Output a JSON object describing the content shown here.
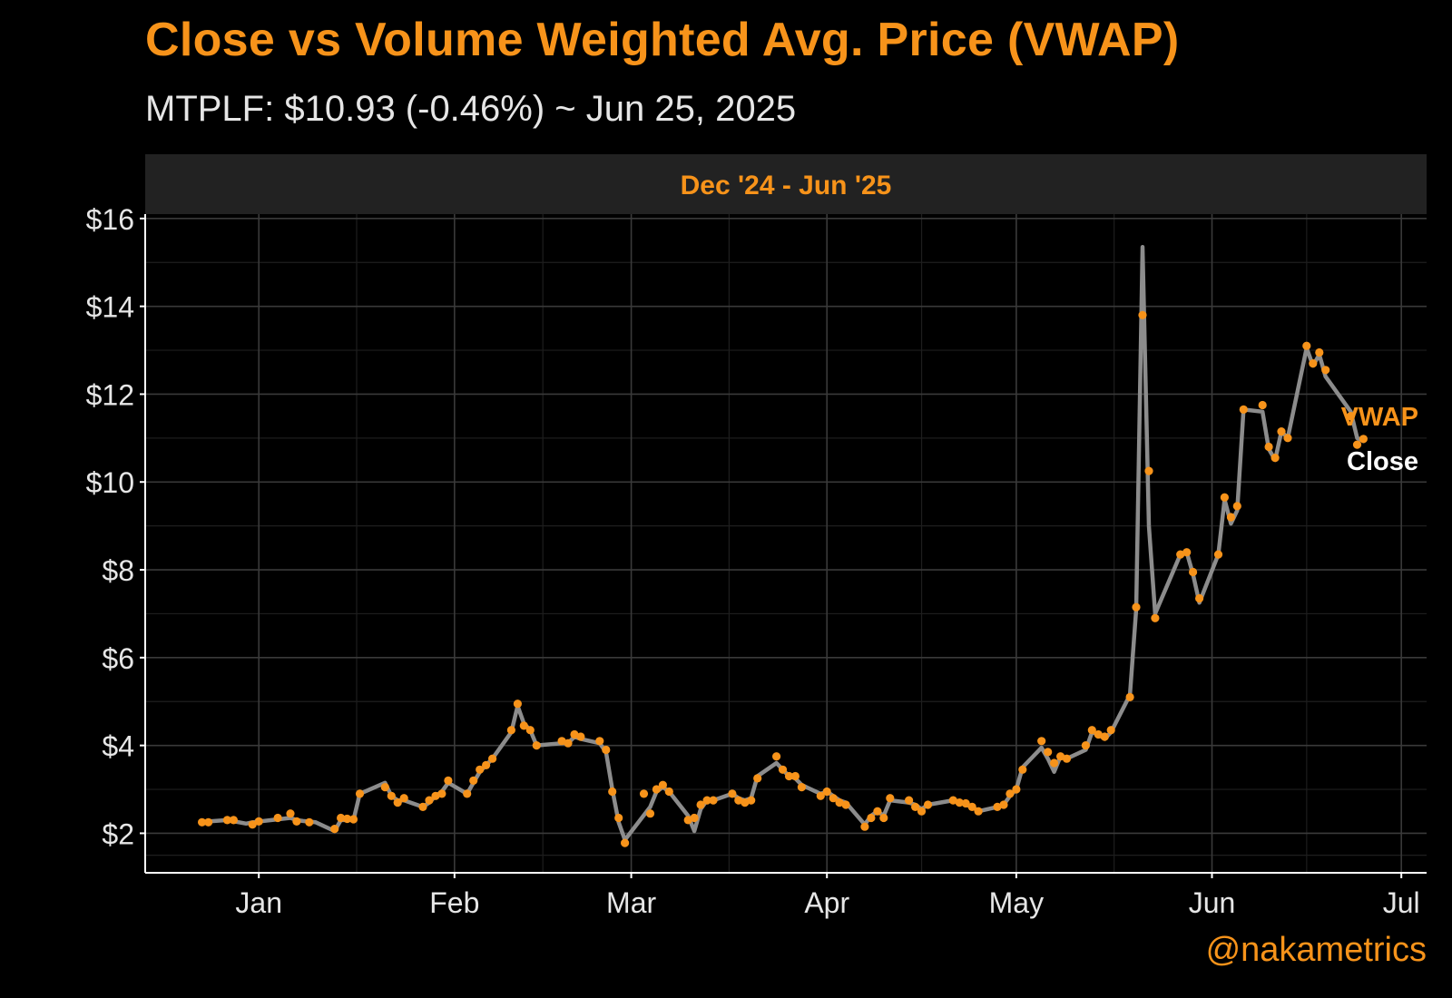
{
  "title": "Close vs Volume Weighted Avg. Price (VWAP)",
  "subtitle": "MTPLF: $10.93 (-0.46%) ~ Jun 25, 2025",
  "credit": "@nakametrics",
  "colors": {
    "accent": "#f7931a",
    "close_line": "#8c8c8c",
    "background": "#000000",
    "strip": "#222222",
    "grid": "#3a3a3a",
    "grid_minor": "#1e1e1e"
  },
  "chart_data": {
    "type": "line",
    "panel_title": "Dec '24 - Jun '25",
    "x_start": "2024-12-16",
    "xlim": [
      "2024-12-14",
      "2025-07-05"
    ],
    "ylim": [
      1.1,
      16.1
    ],
    "yticks": [
      2,
      4,
      6,
      8,
      10,
      12,
      14,
      16
    ],
    "ytick_labels": [
      "$2",
      "$4",
      "$6",
      "$8",
      "$10",
      "$12",
      "$14",
      "$16"
    ],
    "xticks": [
      "2025-01-01",
      "2025-02-01",
      "2025-03-01",
      "2025-04-01",
      "2025-05-01",
      "2025-06-01",
      "2025-07-01"
    ],
    "xtick_labels": [
      "Jan",
      "Feb",
      "Mar",
      "Apr",
      "May",
      "Jun",
      "Jul"
    ],
    "grid": true,
    "series": [
      {
        "name": "Close",
        "style": "line",
        "points": [
          [
            "2024-12-23",
            2.25
          ],
          [
            "2024-12-24",
            2.27
          ],
          [
            "2024-12-27",
            2.3
          ],
          [
            "2024-12-30",
            2.22
          ],
          [
            "2024-12-31",
            2.25
          ],
          [
            "2025-01-03",
            2.3
          ],
          [
            "2025-01-06",
            2.35
          ],
          [
            "2025-01-07",
            2.3
          ],
          [
            "2025-01-08",
            2.28
          ],
          [
            "2025-01-10",
            2.25
          ],
          [
            "2025-01-13",
            2.05
          ],
          [
            "2025-01-14",
            2.3
          ],
          [
            "2025-01-15",
            2.3
          ],
          [
            "2025-01-16",
            2.3
          ],
          [
            "2025-01-17",
            2.9
          ],
          [
            "2025-01-21",
            3.15
          ],
          [
            "2025-01-22",
            2.85
          ],
          [
            "2025-01-23",
            2.75
          ],
          [
            "2025-01-24",
            2.75
          ],
          [
            "2025-01-27",
            2.6
          ],
          [
            "2025-01-28",
            2.7
          ],
          [
            "2025-01-29",
            2.85
          ],
          [
            "2025-01-30",
            2.95
          ],
          [
            "2025-01-31",
            3.15
          ],
          [
            "2025-02-03",
            2.9
          ],
          [
            "2025-02-04",
            3.15
          ],
          [
            "2025-02-05",
            3.4
          ],
          [
            "2025-02-06",
            3.55
          ],
          [
            "2025-02-07",
            3.7
          ],
          [
            "2025-02-10",
            4.3
          ],
          [
            "2025-02-11",
            4.9
          ],
          [
            "2025-02-12",
            4.5
          ],
          [
            "2025-02-13",
            4.35
          ],
          [
            "2025-02-14",
            4.0
          ],
          [
            "2025-02-18",
            4.05
          ],
          [
            "2025-02-19",
            4.05
          ],
          [
            "2025-02-20",
            4.2
          ],
          [
            "2025-02-21",
            4.15
          ],
          [
            "2025-02-24",
            4.05
          ],
          [
            "2025-02-25",
            3.85
          ],
          [
            "2025-02-26",
            3.0
          ],
          [
            "2025-02-27",
            2.25
          ],
          [
            "2025-02-28",
            1.85
          ],
          [
            "2025-03-04",
            2.6
          ],
          [
            "2025-03-05",
            2.95
          ],
          [
            "2025-03-06",
            3.05
          ],
          [
            "2025-03-07",
            2.95
          ],
          [
            "2025-03-10",
            2.4
          ],
          [
            "2025-03-11",
            2.05
          ],
          [
            "2025-03-12",
            2.55
          ],
          [
            "2025-03-13",
            2.75
          ],
          [
            "2025-03-14",
            2.75
          ],
          [
            "2025-03-17",
            2.9
          ],
          [
            "2025-03-18",
            2.8
          ],
          [
            "2025-03-19",
            2.75
          ],
          [
            "2025-03-20",
            2.8
          ],
          [
            "2025-03-21",
            3.3
          ],
          [
            "2025-03-24",
            3.6
          ],
          [
            "2025-03-25",
            3.45
          ],
          [
            "2025-03-26",
            3.3
          ],
          [
            "2025-03-27",
            3.25
          ],
          [
            "2025-03-28",
            3.1
          ],
          [
            "2025-03-31",
            2.9
          ],
          [
            "2025-04-01",
            2.95
          ],
          [
            "2025-04-02",
            2.85
          ],
          [
            "2025-04-03",
            2.75
          ],
          [
            "2025-04-04",
            2.7
          ],
          [
            "2025-04-07",
            2.2
          ],
          [
            "2025-04-08",
            2.4
          ],
          [
            "2025-04-09",
            2.5
          ],
          [
            "2025-04-10",
            2.4
          ],
          [
            "2025-04-11",
            2.75
          ],
          [
            "2025-04-14",
            2.7
          ],
          [
            "2025-04-15",
            2.65
          ],
          [
            "2025-04-16",
            2.55
          ],
          [
            "2025-04-17",
            2.65
          ],
          [
            "2025-04-21",
            2.75
          ],
          [
            "2025-04-22",
            2.7
          ],
          [
            "2025-04-23",
            2.65
          ],
          [
            "2025-04-24",
            2.6
          ],
          [
            "2025-04-25",
            2.5
          ],
          [
            "2025-04-28",
            2.6
          ],
          [
            "2025-04-29",
            2.65
          ],
          [
            "2025-04-30",
            2.85
          ],
          [
            "2025-05-01",
            3.0
          ],
          [
            "2025-05-02",
            3.5
          ],
          [
            "2025-05-05",
            3.95
          ],
          [
            "2025-05-06",
            3.7
          ],
          [
            "2025-05-07",
            3.4
          ],
          [
            "2025-05-08",
            3.75
          ],
          [
            "2025-05-09",
            3.7
          ],
          [
            "2025-05-12",
            3.9
          ],
          [
            "2025-05-13",
            4.3
          ],
          [
            "2025-05-14",
            4.25
          ],
          [
            "2025-05-15",
            4.15
          ],
          [
            "2025-05-16",
            4.3
          ],
          [
            "2025-05-19",
            5.15
          ],
          [
            "2025-05-20",
            7.1
          ],
          [
            "2025-05-21",
            15.35
          ],
          [
            "2025-05-22",
            9.0
          ],
          [
            "2025-05-23",
            7.0
          ],
          [
            "2025-05-27",
            8.35
          ],
          [
            "2025-05-28",
            8.4
          ],
          [
            "2025-05-29",
            7.9
          ],
          [
            "2025-05-30",
            7.25
          ],
          [
            "2025-06-02",
            8.35
          ],
          [
            "2025-06-03",
            9.6
          ],
          [
            "2025-06-04",
            9.05
          ],
          [
            "2025-06-05",
            9.35
          ],
          [
            "2025-06-06",
            11.65
          ],
          [
            "2025-06-09",
            11.6
          ],
          [
            "2025-06-10",
            10.75
          ],
          [
            "2025-06-11",
            10.5
          ],
          [
            "2025-06-12",
            11.15
          ],
          [
            "2025-06-13",
            11.0
          ],
          [
            "2025-06-16",
            13.05
          ],
          [
            "2025-06-17",
            12.65
          ],
          [
            "2025-06-18",
            12.9
          ],
          [
            "2025-06-19",
            12.4
          ],
          [
            "2025-06-23",
            11.6
          ],
          [
            "2025-06-24",
            11.0
          ],
          [
            "2025-06-25",
            10.93
          ]
        ]
      },
      {
        "name": "VWAP",
        "style": "points",
        "points": [
          [
            "2024-12-23",
            2.25
          ],
          [
            "2024-12-24",
            2.25
          ],
          [
            "2024-12-27",
            2.3
          ],
          [
            "2024-12-28",
            2.3
          ],
          [
            "2024-12-31",
            2.2
          ],
          [
            "2025-01-01",
            2.27
          ],
          [
            "2025-01-04",
            2.35
          ],
          [
            "2025-01-06",
            2.45
          ],
          [
            "2025-01-07",
            2.27
          ],
          [
            "2025-01-09",
            2.25
          ],
          [
            "2025-01-13",
            2.1
          ],
          [
            "2025-01-14",
            2.35
          ],
          [
            "2025-01-15",
            2.33
          ],
          [
            "2025-01-16",
            2.32
          ],
          [
            "2025-01-17",
            2.9
          ],
          [
            "2025-01-21",
            3.05
          ],
          [
            "2025-01-22",
            2.85
          ],
          [
            "2025-01-23",
            2.7
          ],
          [
            "2025-01-24",
            2.8
          ],
          [
            "2025-01-27",
            2.6
          ],
          [
            "2025-01-28",
            2.75
          ],
          [
            "2025-01-29",
            2.85
          ],
          [
            "2025-01-30",
            2.9
          ],
          [
            "2025-01-31",
            3.2
          ],
          [
            "2025-02-03",
            2.9
          ],
          [
            "2025-02-04",
            3.2
          ],
          [
            "2025-02-05",
            3.45
          ],
          [
            "2025-02-06",
            3.55
          ],
          [
            "2025-02-07",
            3.7
          ],
          [
            "2025-02-10",
            4.35
          ],
          [
            "2025-02-11",
            4.95
          ],
          [
            "2025-02-12",
            4.45
          ],
          [
            "2025-02-13",
            4.35
          ],
          [
            "2025-02-14",
            4.0
          ],
          [
            "2025-02-18",
            4.1
          ],
          [
            "2025-02-19",
            4.05
          ],
          [
            "2025-02-20",
            4.25
          ],
          [
            "2025-02-21",
            4.2
          ],
          [
            "2025-02-24",
            4.1
          ],
          [
            "2025-02-25",
            3.9
          ],
          [
            "2025-02-26",
            2.95
          ],
          [
            "2025-02-27",
            2.35
          ],
          [
            "2025-02-28",
            1.78
          ],
          [
            "2025-03-03",
            2.9
          ],
          [
            "2025-03-04",
            2.45
          ],
          [
            "2025-03-05",
            3.0
          ],
          [
            "2025-03-06",
            3.1
          ],
          [
            "2025-03-07",
            2.95
          ],
          [
            "2025-03-10",
            2.3
          ],
          [
            "2025-03-11",
            2.35
          ],
          [
            "2025-03-12",
            2.65
          ],
          [
            "2025-03-13",
            2.75
          ],
          [
            "2025-03-14",
            2.75
          ],
          [
            "2025-03-17",
            2.9
          ],
          [
            "2025-03-18",
            2.75
          ],
          [
            "2025-03-19",
            2.7
          ],
          [
            "2025-03-20",
            2.75
          ],
          [
            "2025-03-21",
            3.25
          ],
          [
            "2025-03-24",
            3.75
          ],
          [
            "2025-03-25",
            3.45
          ],
          [
            "2025-03-26",
            3.3
          ],
          [
            "2025-03-27",
            3.3
          ],
          [
            "2025-03-28",
            3.05
          ],
          [
            "2025-03-31",
            2.85
          ],
          [
            "2025-04-01",
            2.95
          ],
          [
            "2025-04-02",
            2.8
          ],
          [
            "2025-04-03",
            2.7
          ],
          [
            "2025-04-04",
            2.65
          ],
          [
            "2025-04-07",
            2.15
          ],
          [
            "2025-04-08",
            2.35
          ],
          [
            "2025-04-09",
            2.5
          ],
          [
            "2025-04-10",
            2.35
          ],
          [
            "2025-04-11",
            2.8
          ],
          [
            "2025-04-14",
            2.75
          ],
          [
            "2025-04-15",
            2.6
          ],
          [
            "2025-04-16",
            2.5
          ],
          [
            "2025-04-17",
            2.65
          ],
          [
            "2025-04-21",
            2.75
          ],
          [
            "2025-04-22",
            2.7
          ],
          [
            "2025-04-23",
            2.68
          ],
          [
            "2025-04-24",
            2.6
          ],
          [
            "2025-04-25",
            2.5
          ],
          [
            "2025-04-28",
            2.6
          ],
          [
            "2025-04-29",
            2.65
          ],
          [
            "2025-04-30",
            2.9
          ],
          [
            "2025-05-01",
            3.0
          ],
          [
            "2025-05-02",
            3.45
          ],
          [
            "2025-05-05",
            4.1
          ],
          [
            "2025-05-06",
            3.85
          ],
          [
            "2025-05-07",
            3.6
          ],
          [
            "2025-05-08",
            3.75
          ],
          [
            "2025-05-09",
            3.7
          ],
          [
            "2025-05-12",
            4.0
          ],
          [
            "2025-05-13",
            4.35
          ],
          [
            "2025-05-14",
            4.25
          ],
          [
            "2025-05-15",
            4.2
          ],
          [
            "2025-05-16",
            4.35
          ],
          [
            "2025-05-19",
            5.1
          ],
          [
            "2025-05-20",
            7.15
          ],
          [
            "2025-05-21",
            13.8
          ],
          [
            "2025-05-22",
            10.25
          ],
          [
            "2025-05-23",
            6.9
          ],
          [
            "2025-05-27",
            8.35
          ],
          [
            "2025-05-28",
            8.4
          ],
          [
            "2025-05-29",
            7.95
          ],
          [
            "2025-05-30",
            7.35
          ],
          [
            "2025-06-02",
            8.35
          ],
          [
            "2025-06-03",
            9.65
          ],
          [
            "2025-06-04",
            9.2
          ],
          [
            "2025-06-05",
            9.45
          ],
          [
            "2025-06-06",
            11.65
          ],
          [
            "2025-06-09",
            11.75
          ],
          [
            "2025-06-10",
            10.8
          ],
          [
            "2025-06-11",
            10.55
          ],
          [
            "2025-06-12",
            11.15
          ],
          [
            "2025-06-13",
            11.0
          ],
          [
            "2025-06-16",
            13.1
          ],
          [
            "2025-06-17",
            12.7
          ],
          [
            "2025-06-18",
            12.95
          ],
          [
            "2025-06-19",
            12.55
          ],
          [
            "2025-06-23",
            11.5
          ],
          [
            "2025-06-24",
            10.85
          ],
          [
            "2025-06-25",
            10.98
          ]
        ]
      }
    ],
    "end_labels": {
      "vwap": "VWAP",
      "close": "Close"
    }
  }
}
